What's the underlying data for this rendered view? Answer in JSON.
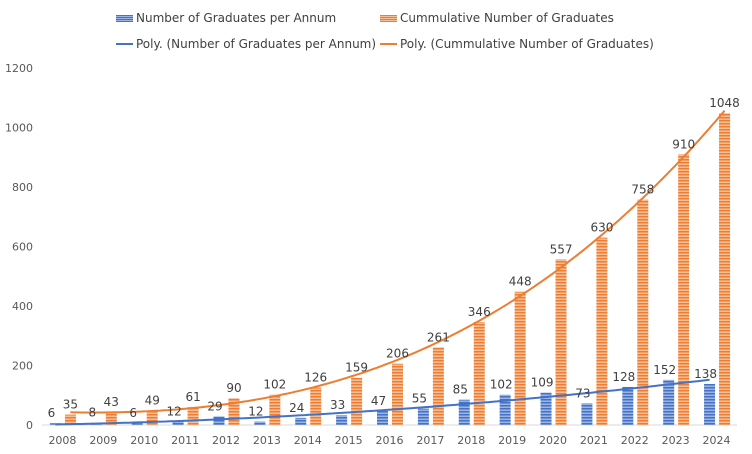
{
  "chart_data": {
    "type": "bar",
    "title": "",
    "xlabel": "",
    "ylabel": "",
    "categories": [
      "2008",
      "2009",
      "2010",
      "2011",
      "2012",
      "2013",
      "2014",
      "2015",
      "2016",
      "2017",
      "2018",
      "2019",
      "2020",
      "2021",
      "2022",
      "2023",
      "2024"
    ],
    "series": [
      {
        "name": "Number of Graduates per Annum",
        "color": "#4472C4",
        "values": [
          6,
          8,
          6,
          12,
          29,
          12,
          24,
          33,
          47,
          55,
          85,
          102,
          109,
          73,
          128,
          152,
          138
        ]
      },
      {
        "name": "Cummulative Number of Graduates",
        "color": "#ED7D31",
        "values": [
          35,
          43,
          49,
          61,
          90,
          102,
          126,
          159,
          206,
          261,
          346,
          448,
          557,
          630,
          758,
          910,
          1048
        ]
      }
    ],
    "trendlines": [
      {
        "name": "Poly. (Number of Graduates per Annum)",
        "series": 0,
        "type": "polynomial",
        "color": "#4472C4"
      },
      {
        "name": "Poly. (Cummulative Number of Graduates)",
        "series": 1,
        "type": "polynomial",
        "color": "#ED7D31"
      }
    ],
    "ylim": [
      0,
      1200
    ],
    "yticks": [
      0,
      200,
      400,
      600,
      800,
      1000,
      1200
    ],
    "grid": false,
    "data_labels": true,
    "legend_position": "top"
  }
}
